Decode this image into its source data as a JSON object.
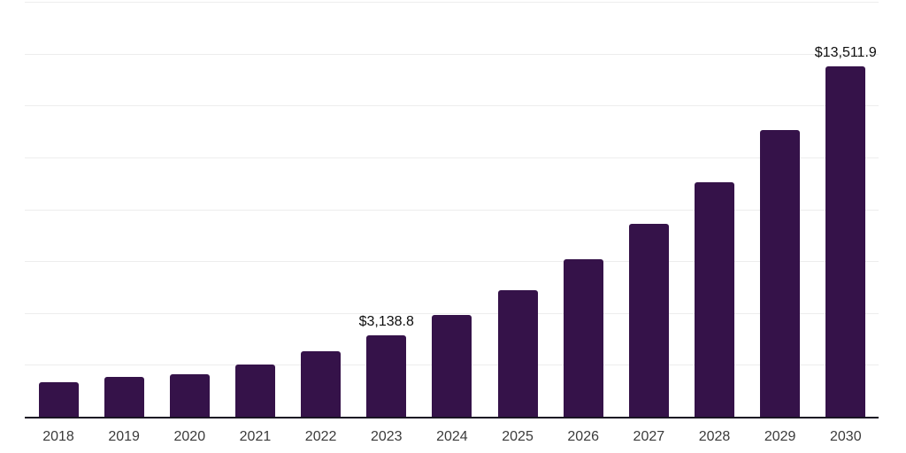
{
  "chart_data": {
    "type": "bar",
    "categories": [
      "2018",
      "2019",
      "2020",
      "2021",
      "2022",
      "2023",
      "2024",
      "2025",
      "2026",
      "2027",
      "2028",
      "2029",
      "2030"
    ],
    "values": [
      1330,
      1535,
      1640,
      2000,
      2535,
      3138.8,
      3925,
      4890,
      6085,
      7450,
      9040,
      11055,
      13511.9
    ],
    "labeled_points": [
      {
        "index": 5,
        "text": "$3,138.8"
      },
      {
        "index": 12,
        "text": "$13,511.9"
      }
    ],
    "title": "",
    "xlabel": "",
    "ylabel": "",
    "ylim": [
      0,
      16000
    ],
    "gridline_interval": 2000,
    "grid": "horizontal",
    "legend": "none"
  },
  "style": {
    "bar_color": "#351249",
    "gridline_color": "#ededed",
    "axis_color": "#1a1423",
    "tick_label_color": "#3b3b3b",
    "value_label_color": "#0e0e0e",
    "background_color": "#ffffff"
  }
}
